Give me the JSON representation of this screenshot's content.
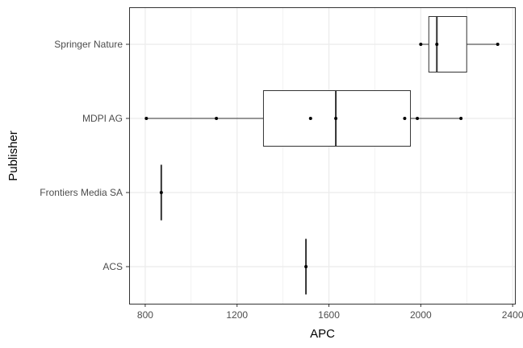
{
  "chart_data": {
    "type": "box",
    "title": "",
    "xlabel": "APC",
    "ylabel": "Publisher",
    "xlim": [
      730,
      2410
    ],
    "x_ticks": [
      800,
      1200,
      1600,
      2000,
      2400
    ],
    "x_tick_labels": [
      "800",
      "1200",
      "1600",
      "2000",
      "2400"
    ],
    "categories": [
      "ACS",
      "Frontiers Media SA",
      "MDPI AG",
      "Springer Nature"
    ],
    "grid": true,
    "legend": "none",
    "boxes": [
      {
        "category": "ACS",
        "min": 1500,
        "q1": 1500,
        "median": 1500,
        "q3": 1500,
        "max": 1500,
        "points": [
          1500
        ]
      },
      {
        "category": "Frontiers Media SA",
        "min": 870,
        "q1": 870,
        "median": 870,
        "q3": 870,
        "max": 870,
        "points": [
          870
        ]
      },
      {
        "category": "MDPI AG",
        "min": 805,
        "q1": 1315,
        "median": 1630,
        "q3": 1955,
        "max": 2175,
        "points": [
          805,
          1110,
          1520,
          1630,
          1930,
          1985,
          2175
        ]
      },
      {
        "category": "Springer Nature",
        "min": 2000,
        "q1": 2035,
        "median": 2070,
        "q3": 2200,
        "max": 2335,
        "points": [
          2000,
          2070,
          2335
        ]
      }
    ],
    "colors": {
      "box_line": "#333333",
      "grid": "#ebebeb",
      "panel_border": "#333333",
      "points": "#000000"
    }
  }
}
